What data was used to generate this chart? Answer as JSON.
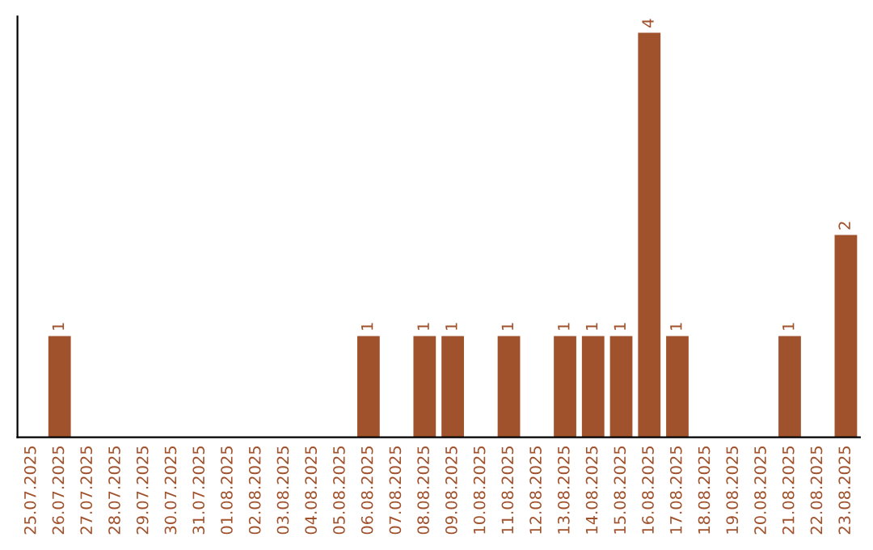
{
  "chart_data": {
    "type": "bar",
    "categories": [
      "25.07.2025",
      "26.07.2025",
      "27.07.2025",
      "28.07.2025",
      "29.07.2025",
      "30.07.2025",
      "31.07.2025",
      "01.08.2025",
      "02.08.2025",
      "03.08.2025",
      "04.08.2025",
      "05.08.2025",
      "06.08.2025",
      "07.08.2025",
      "08.08.2025",
      "09.08.2025",
      "10.08.2025",
      "11.08.2025",
      "12.08.2025",
      "13.08.2025",
      "14.08.2025",
      "15.08.2025",
      "16.08.2025",
      "17.08.2025",
      "18.08.2025",
      "19.08.2025",
      "20.08.2025",
      "21.08.2025",
      "22.08.2025",
      "23.08.2025"
    ],
    "values": [
      0,
      1,
      0,
      0,
      0,
      0,
      0,
      0,
      0,
      0,
      0,
      0,
      1,
      0,
      1,
      1,
      0,
      1,
      0,
      1,
      1,
      1,
      4,
      1,
      0,
      0,
      0,
      1,
      0,
      2
    ],
    "value_labels": [
      null,
      "1",
      null,
      null,
      null,
      null,
      null,
      null,
      null,
      null,
      null,
      null,
      "1",
      null,
      "1",
      "1",
      null,
      "1",
      null,
      "1",
      "1",
      "1",
      "4",
      "1",
      null,
      null,
      null,
      "1",
      null,
      "2"
    ],
    "color": "#a0522d",
    "tick_labels": "x",
    "grid": false
  }
}
